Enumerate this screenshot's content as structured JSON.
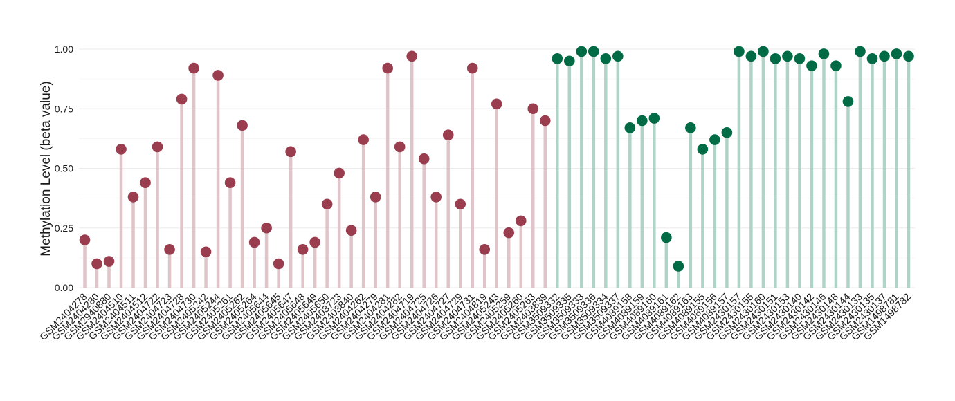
{
  "chart_data": {
    "type": "lollipop",
    "title": "",
    "xlabel": "",
    "ylabel": "Methylation Level (beta value)",
    "ylim": [
      0,
      1
    ],
    "yticks": [
      "0.00",
      "0.25",
      "0.50",
      "0.75",
      "1.00"
    ],
    "grid": true,
    "colors": {
      "group1_point": "#9a3d4e",
      "group1_stem": "#dfc4c9",
      "group2_point": "#006b45",
      "group2_stem": "#b0d3c8"
    },
    "points": [
      {
        "x": "GSM2404278",
        "y": 0.2,
        "group": 1
      },
      {
        "x": "GSM2404280",
        "y": 0.1,
        "group": 1
      },
      {
        "x": "GSM2940880",
        "y": 0.11,
        "group": 1
      },
      {
        "x": "GSM2404510",
        "y": 0.58,
        "group": 1
      },
      {
        "x": "GSM2404511",
        "y": 0.38,
        "group": 1
      },
      {
        "x": "GSM2404512",
        "y": 0.44,
        "group": 1
      },
      {
        "x": "GSM2404722",
        "y": 0.59,
        "group": 1
      },
      {
        "x": "GSM2404723",
        "y": 0.16,
        "group": 1
      },
      {
        "x": "GSM2404728",
        "y": 0.79,
        "group": 1
      },
      {
        "x": "GSM2404730",
        "y": 0.92,
        "group": 1
      },
      {
        "x": "GSM2405242",
        "y": 0.15,
        "group": 1
      },
      {
        "x": "GSM2405244",
        "y": 0.89,
        "group": 1
      },
      {
        "x": "GSM2405261",
        "y": 0.44,
        "group": 1
      },
      {
        "x": "GSM2405262",
        "y": 0.68,
        "group": 1
      },
      {
        "x": "GSM2405264",
        "y": 0.19,
        "group": 1
      },
      {
        "x": "GSM2405644",
        "y": 0.25,
        "group": 1
      },
      {
        "x": "GSM2405645",
        "y": 0.1,
        "group": 1
      },
      {
        "x": "GSM2405647",
        "y": 0.57,
        "group": 1
      },
      {
        "x": "GSM2405648",
        "y": 0.16,
        "group": 1
      },
      {
        "x": "GSM2405649",
        "y": 0.19,
        "group": 1
      },
      {
        "x": "GSM2405650",
        "y": 0.35,
        "group": 1
      },
      {
        "x": "GSM2403723",
        "y": 0.48,
        "group": 1
      },
      {
        "x": "GSM2403840",
        "y": 0.24,
        "group": 1
      },
      {
        "x": "GSM2404262",
        "y": 0.62,
        "group": 1
      },
      {
        "x": "GSM2404279",
        "y": 0.38,
        "group": 1
      },
      {
        "x": "GSM2404281",
        "y": 0.92,
        "group": 1
      },
      {
        "x": "GSM2404282",
        "y": 0.59,
        "group": 1
      },
      {
        "x": "GSM2404719",
        "y": 0.97,
        "group": 1
      },
      {
        "x": "GSM2404725",
        "y": 0.54,
        "group": 1
      },
      {
        "x": "GSM2404726",
        "y": 0.38,
        "group": 1
      },
      {
        "x": "GSM2404727",
        "y": 0.64,
        "group": 1
      },
      {
        "x": "GSM2404729",
        "y": 0.35,
        "group": 1
      },
      {
        "x": "GSM2404731",
        "y": 0.92,
        "group": 1
      },
      {
        "x": "GSM2404819",
        "y": 0.16,
        "group": 1
      },
      {
        "x": "GSM2405243",
        "y": 0.77,
        "group": 1
      },
      {
        "x": "GSM2405259",
        "y": 0.23,
        "group": 1
      },
      {
        "x": "GSM2405260",
        "y": 0.28,
        "group": 1
      },
      {
        "x": "GSM2405263",
        "y": 0.75,
        "group": 1
      },
      {
        "x": "GSM2403839",
        "y": 0.7,
        "group": 1
      },
      {
        "x": "GSM3509332",
        "y": 0.96,
        "group": 2
      },
      {
        "x": "GSM3509335",
        "y": 0.95,
        "group": 2
      },
      {
        "x": "GSM3509333",
        "y": 0.99,
        "group": 2
      },
      {
        "x": "GSM3509336",
        "y": 0.99,
        "group": 2
      },
      {
        "x": "GSM3509334",
        "y": 0.96,
        "group": 2
      },
      {
        "x": "GSM3509337",
        "y": 0.97,
        "group": 2
      },
      {
        "x": "GSM4089158",
        "y": 0.67,
        "group": 2
      },
      {
        "x": "GSM4089159",
        "y": 0.7,
        "group": 2
      },
      {
        "x": "GSM4089160",
        "y": 0.71,
        "group": 2
      },
      {
        "x": "GSM4089161",
        "y": 0.21,
        "group": 2
      },
      {
        "x": "GSM4089162",
        "y": 0.09,
        "group": 2
      },
      {
        "x": "GSM4089163",
        "y": 0.67,
        "group": 2
      },
      {
        "x": "GSM4089155",
        "y": 0.58,
        "group": 2
      },
      {
        "x": "GSM4089156",
        "y": 0.62,
        "group": 2
      },
      {
        "x": "GSM4089157",
        "y": 0.65,
        "group": 2
      },
      {
        "x": "GSM2430157",
        "y": 0.99,
        "group": 2
      },
      {
        "x": "GSM2430155",
        "y": 0.97,
        "group": 2
      },
      {
        "x": "GSM2430160",
        "y": 0.99,
        "group": 2
      },
      {
        "x": "GSM2430151",
        "y": 0.96,
        "group": 2
      },
      {
        "x": "GSM2430153",
        "y": 0.97,
        "group": 2
      },
      {
        "x": "GSM2430140",
        "y": 0.96,
        "group": 2
      },
      {
        "x": "GSM2430142",
        "y": 0.93,
        "group": 2
      },
      {
        "x": "GSM2430146",
        "y": 0.98,
        "group": 2
      },
      {
        "x": "GSM2430148",
        "y": 0.93,
        "group": 2
      },
      {
        "x": "GSM2430144",
        "y": 0.78,
        "group": 2
      },
      {
        "x": "GSM2430133",
        "y": 0.99,
        "group": 2
      },
      {
        "x": "GSM2430135",
        "y": 0.96,
        "group": 2
      },
      {
        "x": "GSM2430137",
        "y": 0.97,
        "group": 2
      },
      {
        "x": "GSM1498781",
        "y": 0.98,
        "group": 2
      },
      {
        "x": "GSM1498782",
        "y": 0.97,
        "group": 2
      }
    ]
  }
}
